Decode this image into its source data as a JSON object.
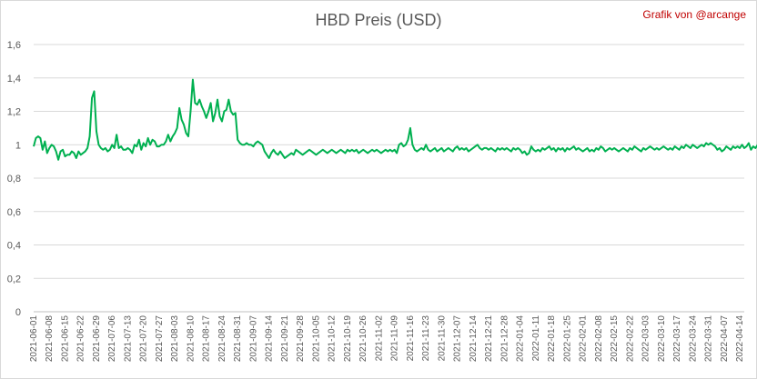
{
  "chart_data": {
    "type": "line",
    "title": "HBD Preis (USD)",
    "credit": "Grafik von @arcange",
    "xlabel": "",
    "ylabel": "",
    "ylim": [
      0,
      1.6
    ],
    "yticks": [
      "0",
      "0,2",
      "0,4",
      "0,6",
      "0,8",
      "1",
      "1,2",
      "1,4",
      "1,6"
    ],
    "grid": true,
    "line_color": "#00b050",
    "x_tick_labels": [
      "2021-06-01",
      "2021-06-08",
      "2021-06-15",
      "2021-06-22",
      "2021-06-29",
      "2021-07-06",
      "2021-07-13",
      "2021-07-20",
      "2021-07-27",
      "2021-08-03",
      "2021-08-10",
      "2021-08-17",
      "2021-08-24",
      "2021-08-31",
      "2021-09-07",
      "2021-09-14",
      "2021-09-21",
      "2021-09-28",
      "2021-10-05",
      "2021-10-12",
      "2021-10-19",
      "2021-10-26",
      "2021-11-02",
      "2021-11-09",
      "2021-11-16",
      "2021-11-23",
      "2021-11-30",
      "2021-12-07",
      "2021-12-14",
      "2021-12-21",
      "2021-12-28",
      "2022-01-04",
      "2022-01-11",
      "2022-01-18",
      "2022-01-25",
      "2022-02-01",
      "2022-02-08",
      "2022-02-15",
      "2022-02-22",
      "2022-03-03",
      "2022-03-10",
      "2022-03-17",
      "2022-03-24",
      "2022-03-31",
      "2022-04-07",
      "2022-04-14"
    ],
    "series": [
      {
        "start_date": "2021-06-01",
        "values": [
          0.99,
          1.04,
          1.05,
          1.04,
          0.97,
          1.02,
          0.95,
          0.98,
          1.0,
          0.99,
          0.96,
          0.91,
          0.96,
          0.97,
          0.93,
          0.94,
          0.94,
          0.96,
          0.95,
          0.92,
          0.96,
          0.94,
          0.95,
          0.96,
          0.98,
          1.05,
          1.28,
          1.32,
          1.08,
          1.0,
          0.98,
          0.97,
          0.98,
          0.96,
          0.97,
          1.0,
          0.98,
          1.06,
          0.98,
          0.99,
          0.97,
          0.97,
          0.98,
          0.97,
          0.95,
          1.0,
          0.99,
          1.03,
          0.97,
          1.01,
          0.99,
          1.04,
          1.0,
          1.03,
          1.02,
          0.99,
          0.99,
          1.0,
          1.0,
          1.02,
          1.06,
          1.02,
          1.05,
          1.07,
          1.1,
          1.22,
          1.15,
          1.12,
          1.07,
          1.05,
          1.2,
          1.39,
          1.25,
          1.24,
          1.27,
          1.23,
          1.2,
          1.16,
          1.2,
          1.25,
          1.14,
          1.19,
          1.27,
          1.17,
          1.14,
          1.2,
          1.21,
          1.27,
          1.2,
          1.18,
          1.19,
          1.03,
          1.01,
          1.0,
          1.0,
          1.01,
          1.0,
          1.0,
          0.99,
          1.01,
          1.02,
          1.01,
          1.0,
          0.96,
          0.94,
          0.92,
          0.95,
          0.97,
          0.95,
          0.94,
          0.96,
          0.94,
          0.92,
          0.93,
          0.94,
          0.95,
          0.94,
          0.97,
          0.96,
          0.95,
          0.94,
          0.95,
          0.96,
          0.97,
          0.96,
          0.95,
          0.94,
          0.95,
          0.96,
          0.97,
          0.96,
          0.95,
          0.96,
          0.97,
          0.96,
          0.95,
          0.96,
          0.97,
          0.96,
          0.95,
          0.97,
          0.96,
          0.97,
          0.96,
          0.97,
          0.95,
          0.96,
          0.97,
          0.96,
          0.95,
          0.96,
          0.97,
          0.96,
          0.97,
          0.96,
          0.95,
          0.96,
          0.97,
          0.96,
          0.97,
          0.96,
          0.97,
          0.95,
          1.0,
          1.01,
          0.99,
          1.0,
          1.03,
          1.1,
          1.0,
          0.97,
          0.96,
          0.97,
          0.98,
          0.97,
          1.0,
          0.97,
          0.96,
          0.97,
          0.98,
          0.96,
          0.97,
          0.98,
          0.96,
          0.97,
          0.98,
          0.97,
          0.96,
          0.98,
          0.99,
          0.97,
          0.98,
          0.97,
          0.98,
          0.96,
          0.97,
          0.98,
          0.99,
          1.0,
          0.98,
          0.97,
          0.98,
          0.98,
          0.97,
          0.98,
          0.97,
          0.96,
          0.98,
          0.97,
          0.98,
          0.97,
          0.98,
          0.97,
          0.96,
          0.98,
          0.97,
          0.98,
          0.97,
          0.95,
          0.96,
          0.94,
          0.95,
          0.99,
          0.97,
          0.96,
          0.97,
          0.96,
          0.98,
          0.97,
          0.98,
          0.99,
          0.97,
          0.98,
          0.96,
          0.98,
          0.97,
          0.98,
          0.96,
          0.98,
          0.97,
          0.98,
          0.99,
          0.97,
          0.98,
          0.97,
          0.96,
          0.97,
          0.98,
          0.96,
          0.97,
          0.96,
          0.98,
          0.97,
          0.99,
          0.98,
          0.96,
          0.97,
          0.98,
          0.97,
          0.98,
          0.97,
          0.96,
          0.97,
          0.98,
          0.97,
          0.96,
          0.98,
          0.97,
          0.99,
          0.98,
          0.97,
          0.96,
          0.98,
          0.97,
          0.98,
          0.99,
          0.98,
          0.97,
          0.98,
          0.97,
          0.98,
          0.99,
          0.98,
          0.97,
          0.98,
          0.97,
          0.99,
          0.98,
          0.97,
          0.99,
          0.98,
          1.0,
          0.99,
          0.98,
          1.0,
          0.99,
          0.98,
          0.99,
          1.0,
          0.99,
          1.01,
          1.0,
          1.01,
          1.0,
          0.99,
          0.97,
          0.98,
          0.96,
          0.97,
          0.99,
          0.98,
          0.97,
          0.99,
          0.98,
          0.99,
          0.98,
          1.0,
          0.98,
          0.99,
          1.01,
          0.97,
          0.99,
          0.98,
          1.0,
          0.99,
          0.97,
          1.0,
          0.99,
          1.01
        ]
      }
    ]
  }
}
